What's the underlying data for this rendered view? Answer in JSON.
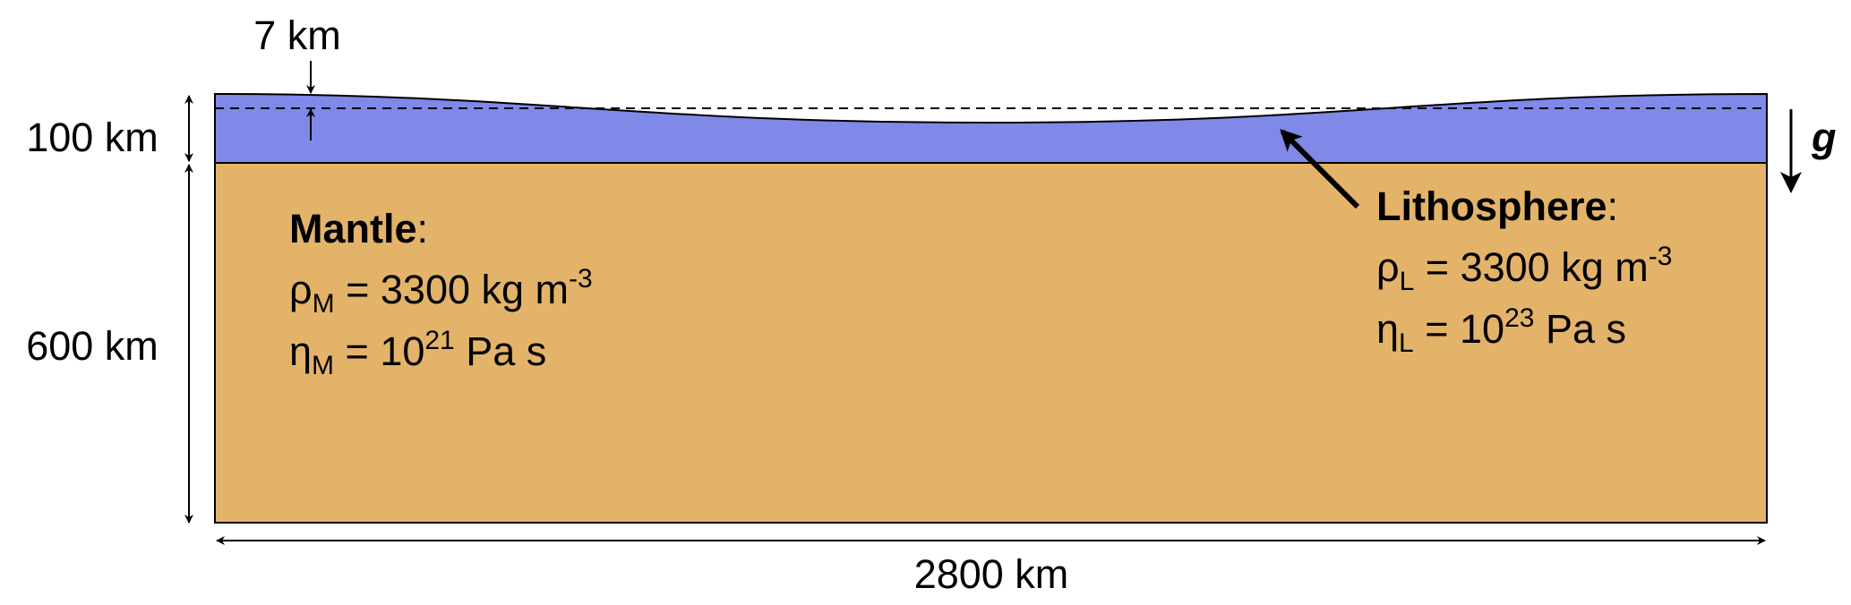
{
  "dimensions": {
    "top_thickness": "7 km",
    "lithosphere_thickness": "100 km",
    "mantle_thickness": "600 km",
    "width": "2800 km",
    "gravity": "g"
  },
  "mantle": {
    "title": "Mantle",
    "title_suffix": ":",
    "density": {
      "symbol": "ρ",
      "subscript": "M",
      "text": " = 3300 kg m",
      "superscript": "-3"
    },
    "viscosity": {
      "symbol": "η",
      "subscript": "M",
      "text": " = 10",
      "superscript": "21",
      "unit": " Pa s"
    }
  },
  "lithosphere": {
    "title": "Lithosphere",
    "title_suffix": ":",
    "density": {
      "symbol": "ρ",
      "subscript": "L",
      "text": " = 3300 kg m",
      "superscript": "-3"
    },
    "viscosity": {
      "symbol": "η",
      "subscript": "L",
      "text": " = 10",
      "superscript": "23",
      "unit": " Pa s"
    }
  }
}
